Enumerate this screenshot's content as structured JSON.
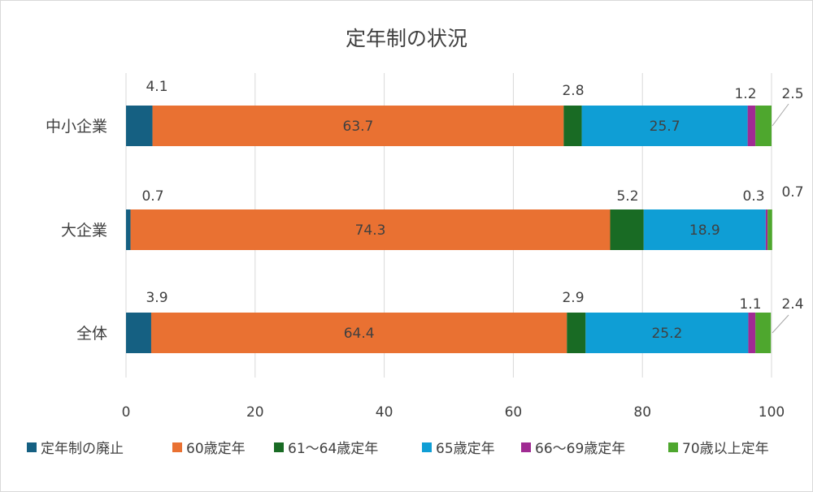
{
  "chart_data": {
    "type": "bar",
    "orientation": "horizontal",
    "stacked": true,
    "title": "定年制の状況",
    "categories": [
      "中小企業",
      "大企業",
      "全体"
    ],
    "series": [
      {
        "name": "定年制の廃止",
        "color": "#156082",
        "values": [
          4.1,
          0.7,
          3.9
        ]
      },
      {
        "name": "60歳定年",
        "color": "#E97132",
        "values": [
          63.7,
          74.3,
          64.4
        ]
      },
      {
        "name": "61～64歳定年",
        "color": "#196B24",
        "values": [
          2.8,
          5.2,
          2.9
        ]
      },
      {
        "name": "65歳定年",
        "color": "#0F9ED5",
        "values": [
          25.7,
          18.9,
          25.2
        ]
      },
      {
        "name": "66～69歳定年",
        "color": "#A02B93",
        "values": [
          1.2,
          0.3,
          1.1
        ]
      },
      {
        "name": "70歳以上定年",
        "color": "#4EA72E",
        "values": [
          2.5,
          0.7,
          2.4
        ]
      }
    ],
    "xlim": [
      0,
      100
    ],
    "xticks": [
      "0",
      "20",
      "40",
      "60",
      "80",
      "100"
    ],
    "grid": true,
    "legend": "bottom"
  }
}
